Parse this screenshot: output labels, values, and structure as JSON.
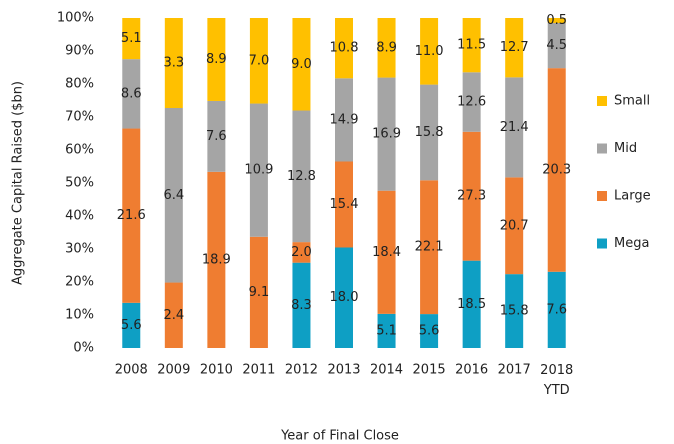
{
  "chart_data": {
    "type": "bar",
    "stack": "percent",
    "y_label": "Aggregate Capital Raised ($bn)",
    "x_label": "Year of Final Close",
    "categories": [
      "2008",
      "2009",
      "2010",
      "2011",
      "2012",
      "2013",
      "2014",
      "2015",
      "2016",
      "2017",
      "2018 YTD"
    ],
    "series": [
      {
        "name": "Mega",
        "color": "#0e9fc4",
        "values": [
          5.6,
          null,
          null,
          null,
          8.3,
          18.0,
          5.1,
          5.6,
          18.5,
          15.8,
          7.6
        ],
        "value_labels": [
          "5.6",
          null,
          null,
          null,
          "8.3",
          "18.0",
          "5.1",
          "5.6",
          "18.5",
          "15.8",
          "7.6"
        ]
      },
      {
        "name": "Large",
        "color": "#ef7d31",
        "values": [
          21.6,
          2.4,
          18.9,
          9.1,
          2.0,
          15.4,
          18.4,
          22.1,
          27.3,
          20.7,
          20.3
        ],
        "value_labels": [
          "21.6",
          "2.4",
          "18.9",
          "9.1",
          "2.0",
          "15.4",
          "18.4",
          "22.1",
          "27.3",
          "20.7",
          "20.3"
        ]
      },
      {
        "name": "Mid",
        "color": "#a5a5a5",
        "values": [
          8.6,
          6.4,
          7.6,
          10.9,
          12.8,
          14.9,
          16.9,
          15.8,
          12.6,
          21.4,
          4.5
        ],
        "value_labels": [
          "8.6",
          "6.4",
          "7.6",
          "10.9",
          "12.8",
          "14.9",
          "16.9",
          "15.8",
          "12.6",
          "21.4",
          "4.5"
        ]
      },
      {
        "name": "Small",
        "color": "#ffc000",
        "values": [
          5.1,
          3.3,
          8.9,
          7.0,
          9.0,
          10.8,
          8.9,
          11.0,
          11.5,
          12.7,
          0.5
        ],
        "value_labels": [
          "5.1",
          "3.3",
          "8.9",
          "7.0",
          "9.0",
          "10.8",
          "8.9",
          "11.0",
          "11.5",
          "12.7",
          "0.5"
        ]
      }
    ],
    "ylim": [
      0,
      100
    ],
    "yticks": [
      {
        "value": 0,
        "label": "0%"
      },
      {
        "value": 10,
        "label": "10%"
      },
      {
        "value": 20,
        "label": "20%"
      },
      {
        "value": 30,
        "label": "30%"
      },
      {
        "value": 40,
        "label": "40%"
      },
      {
        "value": 50,
        "label": "50%"
      },
      {
        "value": 60,
        "label": "60%"
      },
      {
        "value": 70,
        "label": "70%"
      },
      {
        "value": 80,
        "label": "80%"
      },
      {
        "value": 90,
        "label": "90%"
      },
      {
        "value": 100,
        "label": "100%"
      }
    ],
    "legend": "right"
  }
}
